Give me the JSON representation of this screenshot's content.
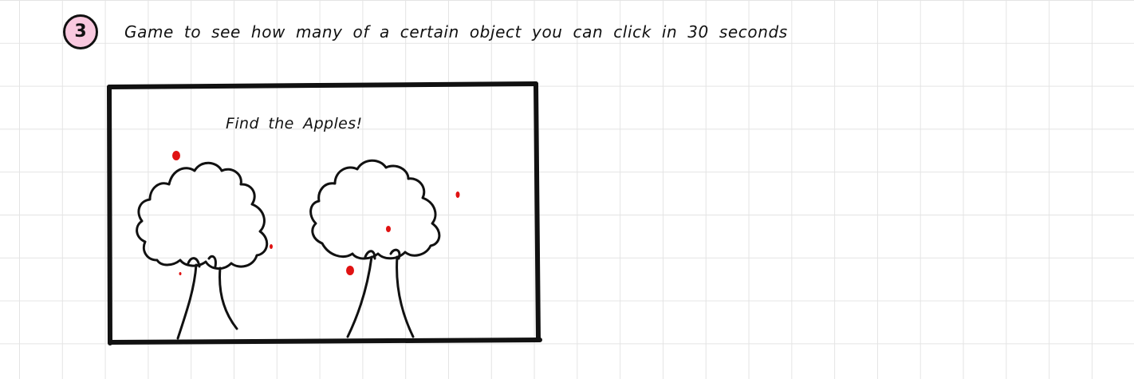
{
  "step": {
    "number": "3",
    "badge_color": "#f9c9df"
  },
  "title": "Game to see how many of a certain object you can click in 30 seconds",
  "game": {
    "heading": "Find the Apples!",
    "apple_color": "#e01212",
    "objects": [
      {
        "name": "tree",
        "count": 2
      },
      {
        "name": "apple",
        "count": 7
      }
    ]
  }
}
